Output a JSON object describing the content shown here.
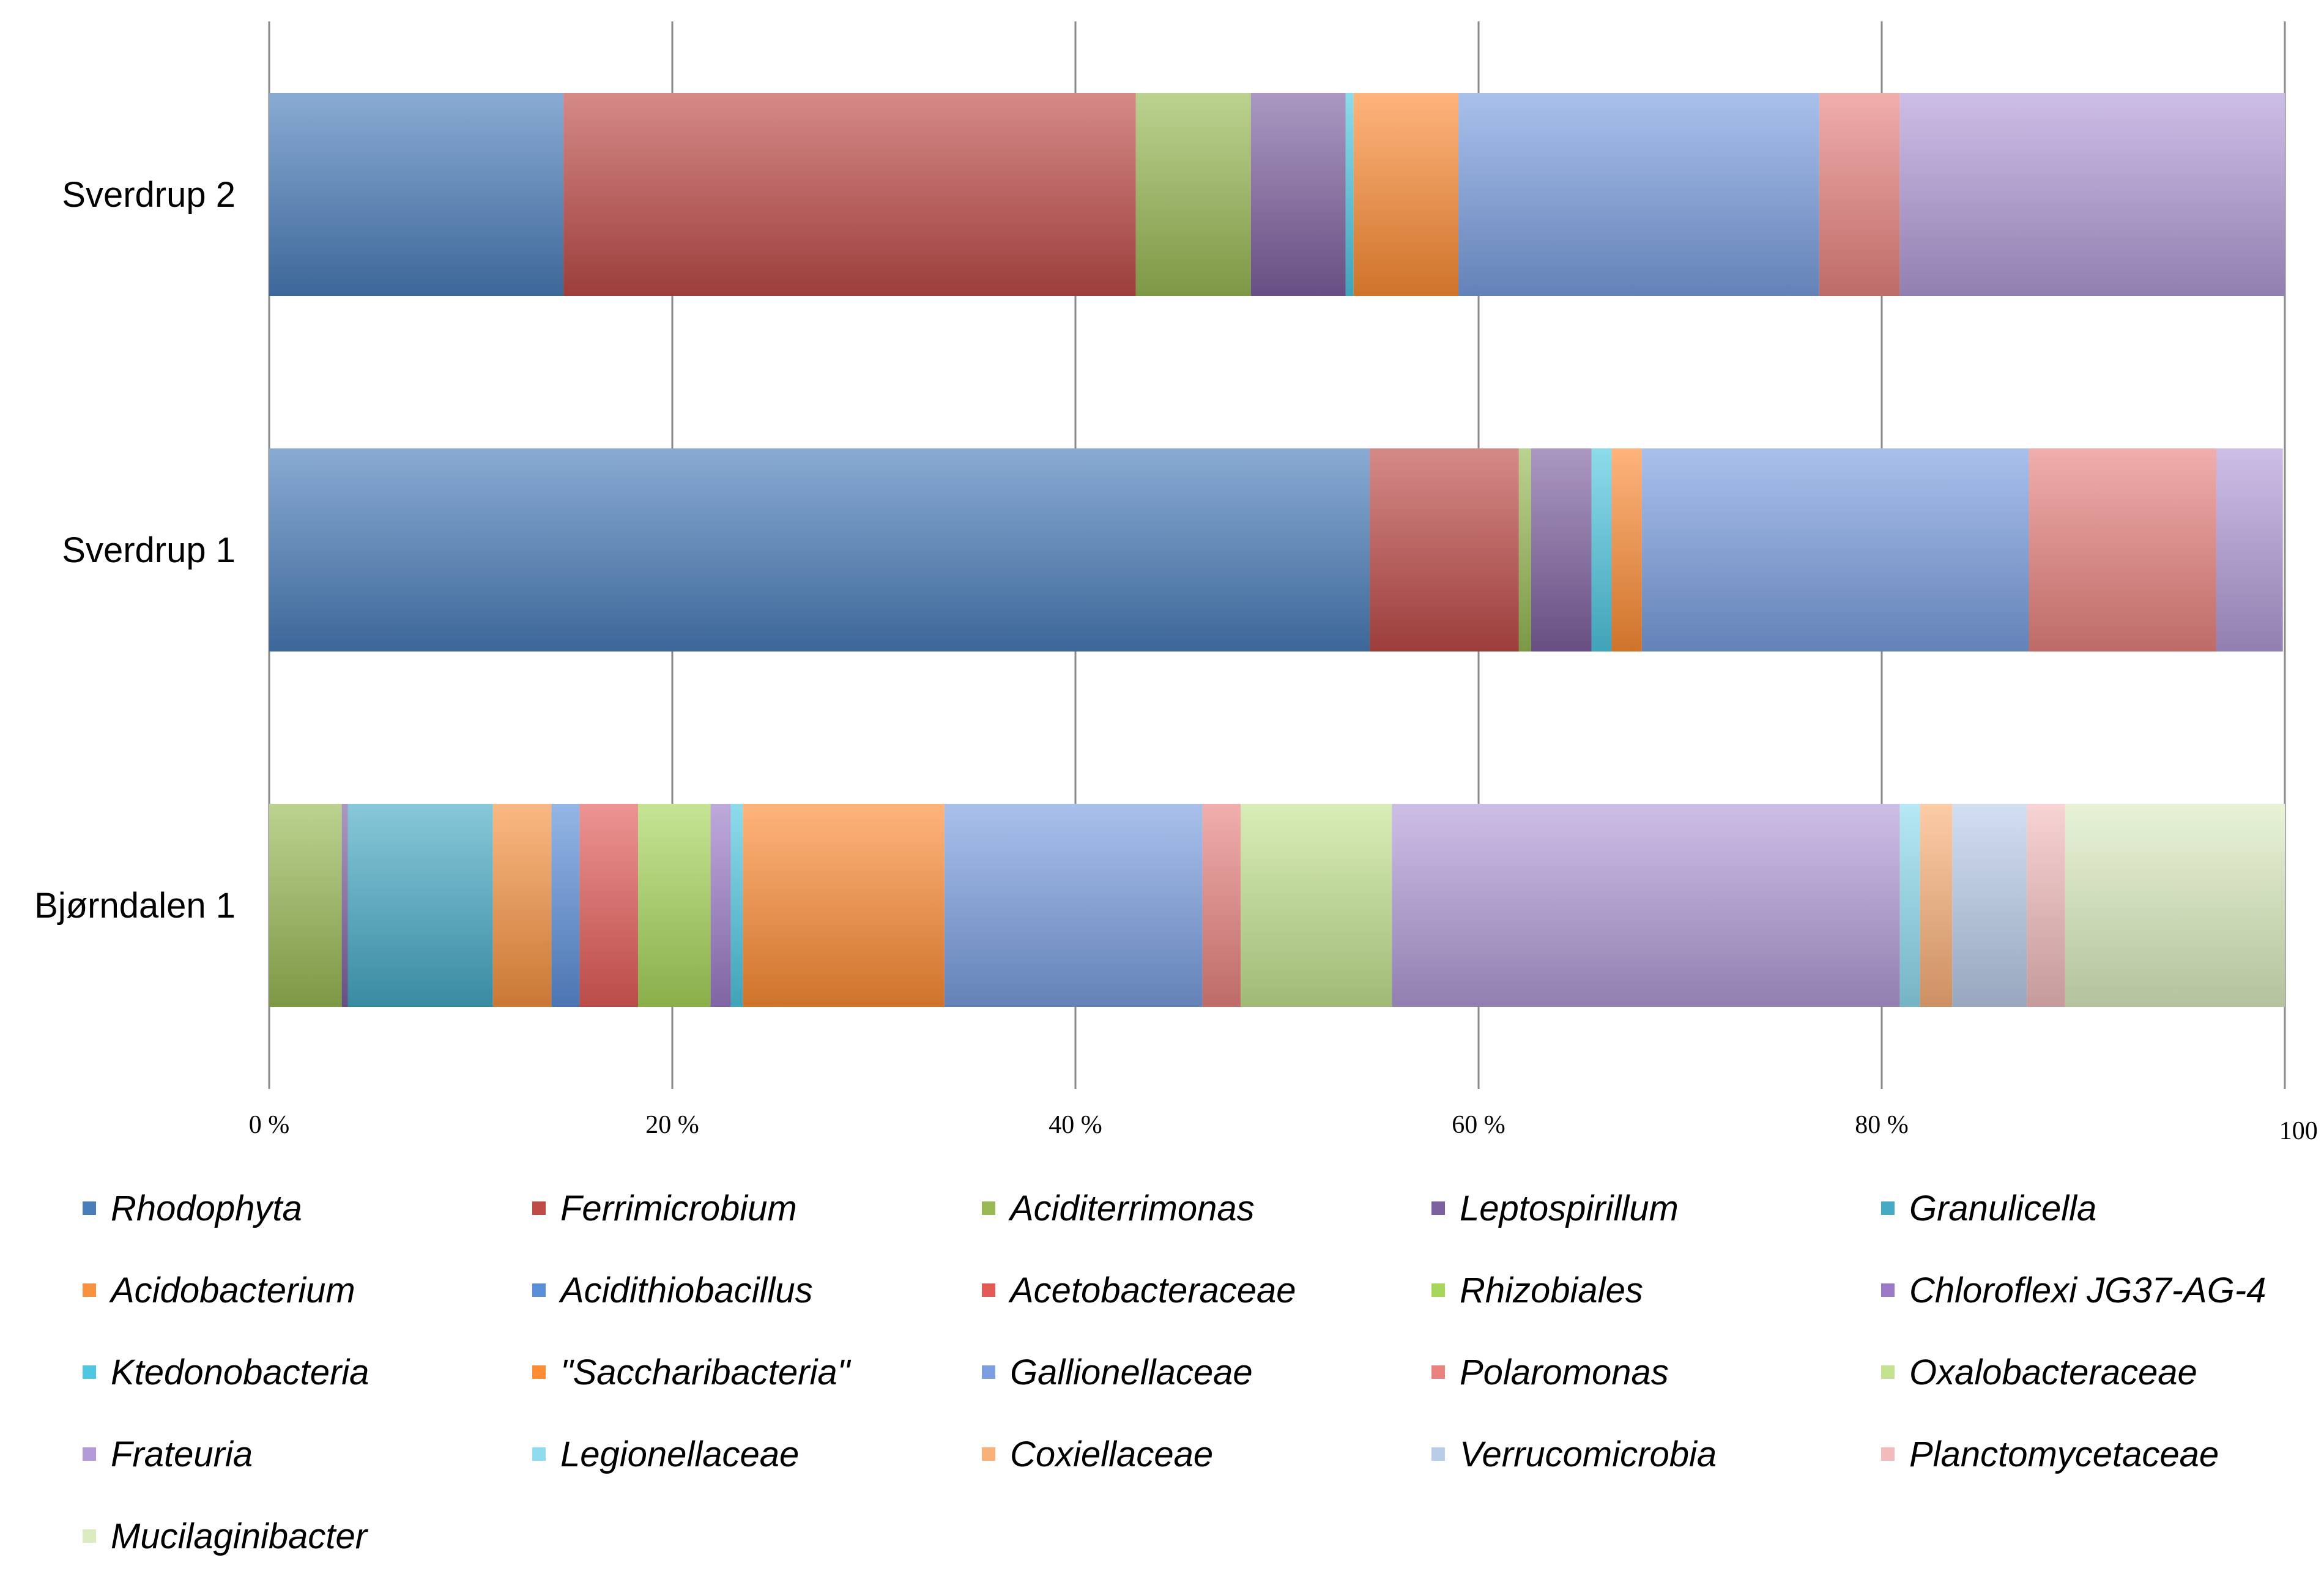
{
  "chart_data": {
    "type": "bar",
    "orientation": "horizontal",
    "stacked": true,
    "normalized": true,
    "categories": [
      "Sverdrup 2",
      "Sverdrup 1",
      "Bjørndalen 1"
    ],
    "x_ticks": [
      "0 %",
      "20 %",
      "40 %",
      "60 %",
      "80 %",
      "100 %"
    ],
    "xlim": [
      0,
      100
    ],
    "grid": "vertical gridlines",
    "legend_position": "bottom",
    "series": [
      {
        "name": "Rhodophyta",
        "color": "#4a7ebb",
        "values": [
          14.6,
          54.6,
          0.0
        ]
      },
      {
        "name": "Ferrimicrobium",
        "color": "#be4b48",
        "values": [
          28.4,
          7.4,
          0.0
        ]
      },
      {
        "name": "Aciditerrimonas",
        "color": "#98b954",
        "values": [
          5.7,
          0.6,
          3.6
        ]
      },
      {
        "name": "Leptospirillum",
        "color": "#7d60a0",
        "values": [
          4.7,
          3.0,
          0.3
        ]
      },
      {
        "name": "Granulicella",
        "color": "#46aac5",
        "values": [
          0.0,
          0.0,
          7.2
        ]
      },
      {
        "name": "Acidobacterium",
        "color": "#f69240",
        "values": [
          0.0,
          0.0,
          2.9
        ]
      },
      {
        "name": "Acidithiobacillus",
        "color": "#5b8fd9",
        "values": [
          0.0,
          0.0,
          1.4
        ]
      },
      {
        "name": "Acetobacteraceae",
        "color": "#e35b58",
        "values": [
          0.0,
          0.0,
          2.9
        ]
      },
      {
        "name": "Rhizobiales",
        "color": "#a8d65a",
        "values": [
          0.0,
          0.0,
          3.6
        ]
      },
      {
        "name": "Chloroflexi JG37-AG-4",
        "color": "#9b7bc7",
        "values": [
          0.0,
          0.0,
          1.0
        ]
      },
      {
        "name": "Ktedonobacteria",
        "color": "#4fc7e0",
        "values": [
          0.4,
          1.0,
          0.6
        ]
      },
      {
        "name": "\"Saccharibacteria\"",
        "color": "#fd8c35",
        "values": [
          5.2,
          1.5,
          10.0
        ]
      },
      {
        "name": "Gallionellaceae",
        "color": "#7a9ee0",
        "values": [
          17.9,
          19.2,
          12.8
        ]
      },
      {
        "name": "Polaromonas",
        "color": "#e8827f",
        "values": [
          4.0,
          9.3,
          1.9
        ]
      },
      {
        "name": "Oxalobacteraceae",
        "color": "#c3e390",
        "values": [
          0.0,
          0.0,
          7.5
        ]
      },
      {
        "name": "Frateuria",
        "color": "#b29bd8",
        "values": [
          19.1,
          3.3,
          25.2
        ]
      },
      {
        "name": "Legionellaceae",
        "color": "#8fdcef",
        "values": [
          0.0,
          0.0,
          1.0
        ]
      },
      {
        "name": "Coxiellaceae",
        "color": "#fab078",
        "values": [
          0.0,
          0.0,
          1.6
        ]
      },
      {
        "name": "Verrucomicrobia",
        "color": "#b9cce9",
        "values": [
          0.0,
          0.0,
          3.7
        ]
      },
      {
        "name": "Planctomycetaceae",
        "color": "#f2bcbc",
        "values": [
          0.0,
          0.0,
          1.9
        ]
      },
      {
        "name": "Mucilaginibacter",
        "color": "#dbedc0",
        "values": [
          0.0,
          0.0,
          10.9
        ]
      }
    ]
  }
}
